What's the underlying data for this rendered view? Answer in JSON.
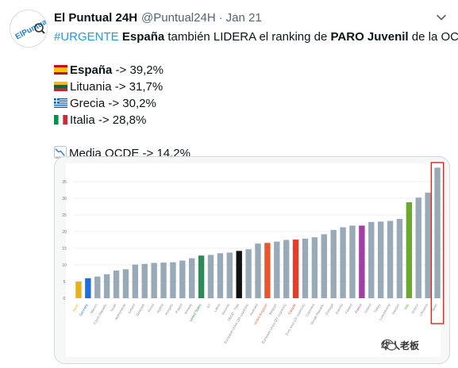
{
  "tweet": {
    "author": "El Puntual 24H",
    "handle": "@Puntual24H",
    "separator": "·",
    "date": "Jan 21",
    "hashtag": "#URGENTE",
    "headline_bold_1": "España",
    "headline_text_1": " también LIDERA el ranking de ",
    "headline_bold_2": "PARO Juvenil",
    "headline_text_2": " de la OCDE.",
    "items": [
      {
        "country": "España",
        "value": " -> 39,2%",
        "bold": true,
        "flag": "es"
      },
      {
        "country": "Lituania",
        "value": " -> 31,7%",
        "bold": false,
        "flag": "lt"
      },
      {
        "country": "Grecia",
        "value": " -> 30,2%",
        "bold": false,
        "flag": "gr"
      },
      {
        "country": "Italia",
        "value": " -> 28,8%",
        "bold": false,
        "flag": "it"
      }
    ],
    "average": "Media OCDE -> 14,2%",
    "avatar_text": "ElPuntual"
  },
  "watermark": "华人老板",
  "chart_data": {
    "type": "bar",
    "title": "",
    "xlabel": "",
    "ylabel": "",
    "ylim": [
      0,
      40
    ],
    "yticks": [
      0,
      5,
      10,
      15,
      20,
      25,
      30,
      35
    ],
    "categories": [
      "Japan",
      "Germany",
      "Mexico",
      "Czech Republic",
      "Israel",
      "Netherlands",
      "Iceland",
      "Denmark",
      "Korea",
      "Austria",
      "Hungary",
      "Poland",
      "Norway",
      "United States",
      "G7",
      "Latvia",
      "Slovenia",
      "OECD - Total",
      "European Union (28 countries)",
      "Australia",
      "United Kingdom",
      "Belgium",
      "European Union (27 countries)",
      "Canada",
      "Euro area (19 countries)",
      "Colombia",
      "Slovak Republic",
      "Portugal",
      "Estonia",
      "Finland",
      "France",
      "Ireland",
      "Turkey",
      "Luxembourg",
      "Sweden",
      "Italy",
      "Greece",
      "Lithuania",
      "Spain"
    ],
    "values": [
      5.0,
      6.0,
      6.5,
      7.2,
      8.3,
      8.7,
      10.1,
      10.3,
      10.6,
      10.7,
      10.8,
      11.3,
      12.0,
      12.8,
      13.0,
      13.5,
      13.7,
      14.2,
      14.7,
      16.4,
      16.6,
      17.0,
      17.5,
      17.6,
      17.9,
      18.3,
      19.2,
      20.5,
      21.3,
      21.8,
      21.8,
      22.9,
      23.0,
      23.2,
      23.8,
      28.8,
      30.2,
      31.7,
      39.2
    ],
    "highlight": {
      "Japan": "#e8b117",
      "Germany": "#1e6ee0",
      "United States": "#2e8b57",
      "OECD - Total": "#111111",
      "United Kingdom": "#e8552f",
      "Canada": "#e53c2c",
      "France": "#a33ea8",
      "Italy": "#6aa82e"
    },
    "bar_color": "#98a9b7",
    "marked": "Spain",
    "marker_color": "#e0241b",
    "grid": true
  }
}
